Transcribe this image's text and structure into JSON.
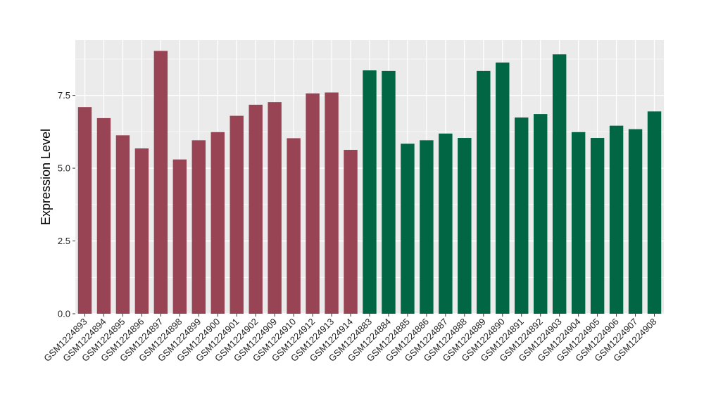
{
  "chart_data": {
    "type": "bar",
    "title": "",
    "xlabel": "",
    "ylabel": "Expression Level",
    "ylim": [
      0,
      9.4
    ],
    "yticks": [
      0.0,
      2.5,
      5.0,
      7.5
    ],
    "ytick_labels": [
      "0.0",
      "2.5",
      "5.0",
      "7.5"
    ],
    "grid": true,
    "legend": "none",
    "categories": [
      "GSM1224893",
      "GSM1224894",
      "GSM1224895",
      "GSM1224896",
      "GSM1224897",
      "GSM1224898",
      "GSM1224899",
      "GSM1224900",
      "GSM1224901",
      "GSM1224902",
      "GSM1224909",
      "GSM1224910",
      "GSM1224912",
      "GSM1224913",
      "GSM1224914",
      "GSM1224883",
      "GSM1224884",
      "GSM1224885",
      "GSM1224886",
      "GSM1224887",
      "GSM1224888",
      "GSM1224889",
      "GSM1224890",
      "GSM1224891",
      "GSM1224892",
      "GSM1224903",
      "GSM1224904",
      "GSM1224905",
      "GSM1224906",
      "GSM1224907",
      "GSM1224908"
    ],
    "values": [
      7.1,
      6.72,
      6.13,
      5.68,
      9.03,
      5.3,
      5.96,
      6.24,
      6.8,
      7.18,
      7.27,
      6.03,
      7.57,
      7.6,
      5.63,
      8.36,
      8.34,
      5.84,
      5.96,
      6.19,
      6.04,
      8.34,
      8.63,
      6.74,
      6.86,
      8.91,
      6.24,
      6.04,
      6.46,
      6.34,
      6.95
    ],
    "groups": [
      0,
      0,
      0,
      0,
      0,
      0,
      0,
      0,
      0,
      0,
      0,
      0,
      0,
      0,
      0,
      1,
      1,
      1,
      1,
      1,
      1,
      1,
      1,
      1,
      1,
      1,
      1,
      1,
      1,
      1,
      1
    ],
    "group_colors": [
      "#994455",
      "#006644"
    ],
    "panel_background": "#ebebeb",
    "gridline_color": "#ffffff"
  }
}
